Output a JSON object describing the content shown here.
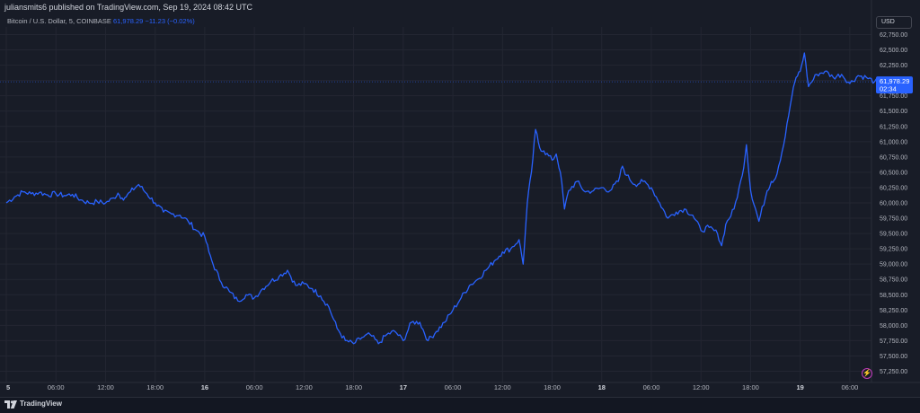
{
  "header": {
    "published_text": "juliansmits6 published on TradingView.com, Sep 19, 2024 08:42 UTC"
  },
  "symbol": {
    "name": "Bitcoin / U.S. Dollar, 5, COINBASE",
    "last_price": "61,978.29",
    "change": "−11.23 (−0.02%)"
  },
  "currency_button": {
    "label": "USD"
  },
  "last_price_tag": {
    "price": "61,978.29",
    "countdown": "02:34"
  },
  "footer": {
    "brand": "TradingView"
  },
  "icons": {
    "lightning": "lightning-icon",
    "logo": "tradingview-logo-icon"
  },
  "colors": {
    "background": "#181c27",
    "line": "#2962ff",
    "grid": "#232632",
    "price_tag": "#2962ff",
    "text": "#d1d4dc"
  },
  "chart_data": {
    "type": "line",
    "title": "",
    "xlabel": "",
    "ylabel": "",
    "ylim": [
      57125,
      62875
    ],
    "x_tick_labels": [
      "5",
      "06:00",
      "12:00",
      "18:00",
      "16",
      "06:00",
      "12:00",
      "18:00",
      "17",
      "06:00",
      "12:00",
      "18:00",
      "18",
      "06:00",
      "12:00",
      "18:00",
      "19",
      "06:00"
    ],
    "y_tick_labels": [
      "62,750.00",
      "62,500.00",
      "62,250.00",
      "62,000.00",
      "61,750.00",
      "61,500.00",
      "61,250.00",
      "61,000.00",
      "60,750.00",
      "60,500.00",
      "60,250.00",
      "60,000.00",
      "59,750.00",
      "59,500.00",
      "59,250.00",
      "59,000.00",
      "58,750.00",
      "58,500.00",
      "58,250.00",
      "58,000.00",
      "57,750.00",
      "57,500.00",
      "57,250.00"
    ],
    "y_tick_values": [
      62750,
      62500,
      62250,
      62000,
      61750,
      61500,
      61250,
      61000,
      60750,
      60500,
      60250,
      60000,
      59750,
      59500,
      59250,
      59000,
      58750,
      58500,
      58250,
      58000,
      57750,
      57500,
      57250
    ],
    "x_hours_from_start": [
      0,
      6,
      12,
      18,
      24,
      30,
      36,
      42,
      48,
      54,
      60,
      66,
      72,
      78,
      84,
      90,
      96,
      102
    ],
    "series": [
      {
        "points": [
          [
            0,
            60000
          ],
          [
            1,
            60100
          ],
          [
            2,
            60180
          ],
          [
            3,
            60150
          ],
          [
            4,
            60170
          ],
          [
            5,
            60130
          ],
          [
            6,
            60150
          ],
          [
            7,
            60120
          ],
          [
            8,
            60140
          ],
          [
            9,
            60050
          ],
          [
            10,
            60000
          ],
          [
            11,
            60020
          ],
          [
            12,
            60000
          ],
          [
            13,
            60080
          ],
          [
            13.5,
            60160
          ],
          [
            14,
            60080
          ],
          [
            14.5,
            60100
          ],
          [
            15,
            60180
          ],
          [
            16,
            60300
          ],
          [
            17,
            60150
          ],
          [
            18,
            60000
          ],
          [
            19,
            59850
          ],
          [
            20,
            59820
          ],
          [
            21,
            59800
          ],
          [
            22,
            59700
          ],
          [
            23,
            59550
          ],
          [
            24,
            59450
          ],
          [
            24.5,
            59200
          ],
          [
            25,
            59000
          ],
          [
            26,
            58700
          ],
          [
            27,
            58550
          ],
          [
            28,
            58400
          ],
          [
            29,
            58500
          ],
          [
            30,
            58450
          ],
          [
            31,
            58600
          ],
          [
            32,
            58720
          ],
          [
            33,
            58800
          ],
          [
            34,
            58900
          ],
          [
            35,
            58650
          ],
          [
            36,
            58680
          ],
          [
            37,
            58600
          ],
          [
            38,
            58480
          ],
          [
            39,
            58300
          ],
          [
            40,
            57950
          ],
          [
            41,
            57750
          ],
          [
            42,
            57700
          ],
          [
            43,
            57800
          ],
          [
            44,
            57850
          ],
          [
            45,
            57700
          ],
          [
            46,
            57850
          ],
          [
            47,
            57900
          ],
          [
            48,
            57750
          ],
          [
            49,
            58050
          ],
          [
            50,
            58050
          ],
          [
            51,
            57750
          ],
          [
            52,
            57900
          ],
          [
            53,
            58050
          ],
          [
            54,
            58250
          ],
          [
            55,
            58450
          ],
          [
            56,
            58650
          ],
          [
            57,
            58750
          ],
          [
            58,
            58900
          ],
          [
            59,
            59050
          ],
          [
            60,
            59200
          ],
          [
            61,
            59250
          ],
          [
            62,
            59400
          ],
          [
            62.5,
            59000
          ],
          [
            63,
            60000
          ],
          [
            63.5,
            60500
          ],
          [
            64,
            61200
          ],
          [
            64.5,
            60900
          ],
          [
            65,
            60850
          ],
          [
            66,
            60700
          ],
          [
            66.5,
            60800
          ],
          [
            67,
            60500
          ],
          [
            67.5,
            59900
          ],
          [
            68,
            60200
          ],
          [
            69,
            60350
          ],
          [
            70,
            60180
          ],
          [
            71,
            60200
          ],
          [
            72,
            60250
          ],
          [
            73,
            60200
          ],
          [
            74,
            60350
          ],
          [
            74.5,
            60600
          ],
          [
            75,
            60450
          ],
          [
            76,
            60300
          ],
          [
            77,
            60350
          ],
          [
            78,
            60250
          ],
          [
            79,
            60000
          ],
          [
            80,
            59750
          ],
          [
            81,
            59850
          ],
          [
            82,
            59900
          ],
          [
            83,
            59800
          ],
          [
            84,
            59550
          ],
          [
            85,
            59600
          ],
          [
            86,
            59500
          ],
          [
            86.5,
            59300
          ],
          [
            87,
            59650
          ],
          [
            88,
            59900
          ],
          [
            89,
            60450
          ],
          [
            89.5,
            60950
          ],
          [
            90,
            60200
          ],
          [
            91,
            59700
          ],
          [
            92,
            60200
          ],
          [
            92.5,
            60350
          ],
          [
            93,
            60400
          ],
          [
            94,
            60950
          ],
          [
            95,
            61750
          ],
          [
            95.5,
            62050
          ],
          [
            96,
            62150
          ],
          [
            96.5,
            62450
          ],
          [
            97,
            61900
          ],
          [
            98,
            62100
          ],
          [
            99,
            62150
          ],
          [
            100,
            62050
          ],
          [
            101,
            62100
          ],
          [
            102,
            61950
          ],
          [
            103,
            62080
          ],
          [
            104,
            62050
          ],
          [
            105,
            61980
          ],
          [
            105.5,
            61978.29
          ]
        ]
      }
    ],
    "grid": true,
    "legend": "none"
  }
}
